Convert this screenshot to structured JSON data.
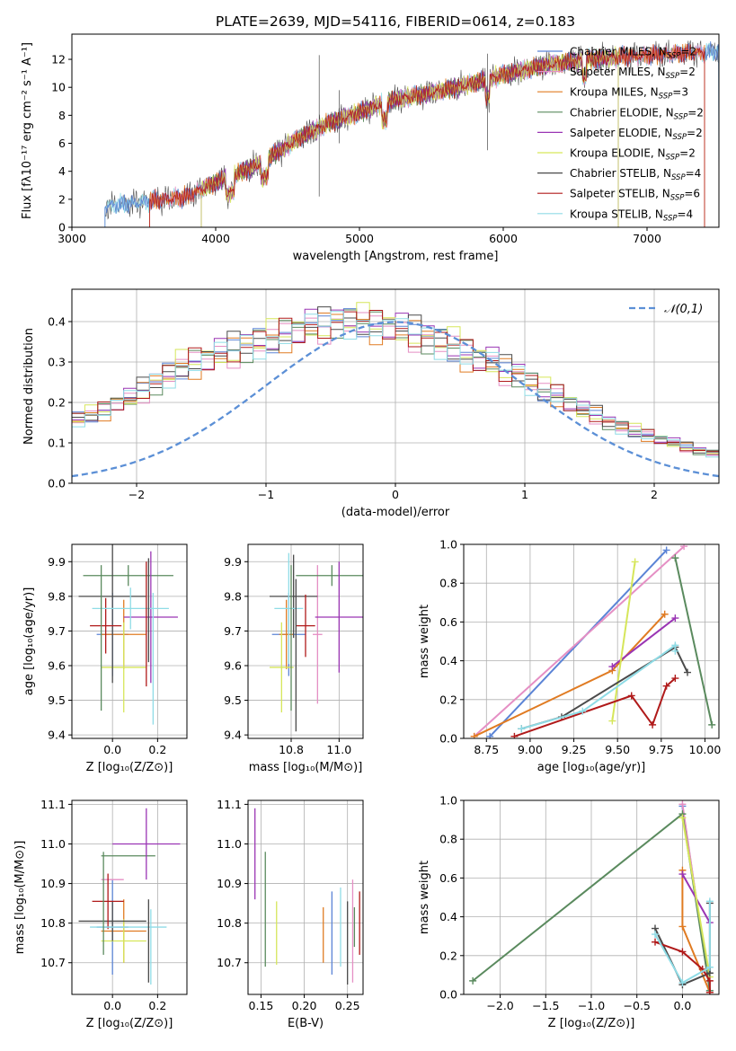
{
  "figure": {
    "title": "PLATE=2639, MJD=54116, FIBERID=0614, z=0.183"
  },
  "colors": {
    "Chabrier MILES": "#5b84d6",
    "Salpeter MILES": "#e58fc4",
    "Kroupa MILES": "#e07b22",
    "Chabrier ELODIE": "#5a8a5e",
    "Salpeter ELODIE": "#9a35b4",
    "Kroupa ELODIE": "#d6e65a",
    "Chabrier STELIB": "#4a4a4a",
    "Salpeter STELIB": "#b01a1a",
    "Kroupa STELIB": "#8fdce6",
    "normal": "#5b8fd6"
  },
  "chart_data": [
    {
      "id": "spectrum",
      "type": "line",
      "xlabel": "wavelength [Angstrom, rest frame]",
      "ylabel": "Flux [fλ10⁻¹⁷ erg cm⁻² s⁻¹ A⁻¹]",
      "xlim": [
        3000,
        7500
      ],
      "ylim": [
        0,
        13.8
      ],
      "xticks": [
        3000,
        4000,
        5000,
        6000,
        7000
      ],
      "yticks": [
        0,
        2,
        4,
        6,
        8,
        10,
        12
      ],
      "legend_position": "right",
      "legend": [
        {
          "label": "Chabrier MILES, N",
          "sub": "SSP",
          "tail": "=2",
          "color": "#5b84d6"
        },
        {
          "label": "Salpeter MILES, N",
          "sub": "SSP",
          "tail": "=2",
          "color": "#e58fc4"
        },
        {
          "label": "Kroupa MILES, N",
          "sub": "SSP",
          "tail": "=3",
          "color": "#e07b22"
        },
        {
          "label": "Chabrier ELODIE, N",
          "sub": "SSP",
          "tail": "=2",
          "color": "#5a8a5e"
        },
        {
          "label": "Salpeter ELODIE, N",
          "sub": "SSP",
          "tail": "=2",
          "color": "#9a35b4"
        },
        {
          "label": "Kroupa ELODIE, N",
          "sub": "SSP",
          "tail": "=2",
          "color": "#d6e65a"
        },
        {
          "label": "Chabrier STELIB, N",
          "sub": "SSP",
          "tail": "=4",
          "color": "#4a4a4a"
        },
        {
          "label": "Salpeter STELIB, N",
          "sub": "SSP",
          "tail": "=6",
          "color": "#b01a1a"
        },
        {
          "label": "Kroupa STELIB, N",
          "sub": "SSP",
          "tail": "=4",
          "color": "#8fdce6"
        }
      ],
      "continuum_anchors": [
        [
          3230,
          1.5
        ],
        [
          3500,
          1.8
        ],
        [
          3800,
          2.2
        ],
        [
          4000,
          3.2
        ],
        [
          4300,
          4.5
        ],
        [
          4600,
          6.5
        ],
        [
          4800,
          7.5
        ],
        [
          5000,
          8.2
        ],
        [
          5200,
          9.0
        ],
        [
          5500,
          9.6
        ],
        [
          5800,
          10.3
        ],
        [
          6000,
          10.9
        ],
        [
          6300,
          11.6
        ],
        [
          6600,
          12.0
        ],
        [
          7000,
          12.3
        ],
        [
          7400,
          12.5
        ],
        [
          7500,
          12.6
        ]
      ],
      "model_ranges": [
        [
          3230,
          7500
        ],
        [
          3540,
          7400
        ],
        [
          3540,
          7400
        ],
        [
          3900,
          6800
        ],
        [
          3900,
          6800
        ],
        [
          3900,
          6800
        ],
        [
          3230,
          7500
        ],
        [
          3540,
          7400
        ],
        [
          3230,
          7500
        ]
      ],
      "spikes": [
        [
          4720,
          2.2,
          12.3
        ],
        [
          5890,
          5.5,
          12.4
        ],
        [
          4860,
          6.0,
          9.8
        ]
      ]
    },
    {
      "id": "residuals",
      "type": "histogram",
      "xlabel": "(data-model)/error",
      "ylabel": "Normed distribution",
      "xlim": [
        -2.5,
        2.5
      ],
      "ylim": [
        0,
        0.48
      ],
      "xticks": [
        -2,
        -1,
        0,
        1,
        2
      ],
      "yticks": [
        0.0,
        0.1,
        0.2,
        0.3,
        0.4
      ],
      "legend": [
        {
          "label": "𝒩(0,1)",
          "color": "#5b8fd6",
          "style": "dashed"
        }
      ],
      "bin_width": 0.1,
      "base": [
        0.06,
        0.065,
        0.07,
        0.08,
        0.09,
        0.1,
        0.11,
        0.12,
        0.13,
        0.14,
        0.16,
        0.17,
        0.18,
        0.2,
        0.21,
        0.23,
        0.25,
        0.27,
        0.29,
        0.3,
        0.31,
        0.32,
        0.33,
        0.34,
        0.35,
        0.36,
        0.37,
        0.38,
        0.39,
        0.39,
        0.4,
        0.4,
        0.4,
        0.39,
        0.39,
        0.38,
        0.37,
        0.36,
        0.35,
        0.34,
        0.32,
        0.31,
        0.3,
        0.28,
        0.27,
        0.25,
        0.23,
        0.22,
        0.2,
        0.18,
        0.17,
        0.15,
        0.14,
        0.13,
        0.12,
        0.11,
        0.1,
        0.09,
        0.08,
        0.075,
        0.07,
        0.06,
        0.055,
        0.05,
        0.045,
        0.04,
        0.038,
        0.035,
        0.035,
        0.035
      ]
    },
    {
      "id": "z-age",
      "type": "errorbar",
      "xlabel": "Z [log₁₀(Z/Z⊙)]",
      "ylabel": "age  [log₁₀(age/yr)]",
      "xlim": [
        -0.18,
        0.33
      ],
      "ylim": [
        9.39,
        9.95
      ],
      "xticks": [
        0.0,
        0.2
      ],
      "yticks": [
        9.4,
        9.5,
        9.6,
        9.7,
        9.8,
        9.9
      ],
      "points": [
        {
          "x": 0.0,
          "y": 9.69,
          "xerr": 0.07,
          "yerr": 0.12,
          "color": "#5b84d6"
        },
        {
          "x": 0.2,
          "y": 9.69,
          "xerr": 0.0,
          "yerr": 0.0,
          "color": "#e58fc4"
        },
        {
          "x": 0.05,
          "y": 9.69,
          "xerr": 0.1,
          "yerr": 0.1,
          "color": "#e07b22"
        },
        {
          "x": 0.07,
          "y": 9.86,
          "xerr": 0.2,
          "yerr": 0.03,
          "color": "#5a8a5e"
        },
        {
          "x": 0.17,
          "y": 9.74,
          "xerr": 0.12,
          "yerr": 0.19,
          "color": "#9a35b4"
        },
        {
          "x": 0.05,
          "y": 9.595,
          "xerr": 0.1,
          "yerr": 0.13,
          "color": "#d6e65a"
        },
        {
          "x": 0.0,
          "y": 9.8,
          "xerr": 0.15,
          "yerr": 0.25,
          "color": "#4a4a4a"
        },
        {
          "x": -0.03,
          "y": 9.715,
          "xerr": 0.07,
          "yerr": 0.08,
          "color": "#b01a1a"
        },
        {
          "x": 0.08,
          "y": 9.765,
          "xerr": 0.17,
          "yerr": 0.06,
          "color": "#8fdce6"
        },
        {
          "x": 0.18,
          "y": 9.62,
          "xerr": 0.0,
          "yerr": 0.19,
          "color": "#8fdce6"
        },
        {
          "x": 0.16,
          "y": 9.76,
          "xerr": 0.0,
          "yerr": 0.15,
          "color": "#4a4a4a"
        },
        {
          "x": -0.05,
          "y": 9.68,
          "xerr": 0.0,
          "yerr": 0.21,
          "color": "#5a8a5e"
        },
        {
          "x": 0.15,
          "y": 9.72,
          "xerr": 0.0,
          "yerr": 0.18,
          "color": "#b01a1a"
        }
      ]
    },
    {
      "id": "mass-age",
      "type": "errorbar",
      "xlabel": "mass [log₁₀(M/M⊙)]",
      "ylabel": "",
      "xlim": [
        10.62,
        11.1
      ],
      "ylim": [
        9.39,
        9.95
      ],
      "xticks": [
        10.8,
        11.0
      ],
      "yticks": [
        9.4,
        9.5,
        9.6,
        9.7,
        9.8,
        9.9
      ],
      "points": [
        {
          "x": 10.79,
          "y": 9.69,
          "xerr": 0.07,
          "yerr": 0.12,
          "color": "#5b84d6"
        },
        {
          "x": 10.91,
          "y": 9.69,
          "xerr": 0.02,
          "yerr": 0.2,
          "color": "#e58fc4"
        },
        {
          "x": 10.78,
          "y": 9.69,
          "xerr": 0.03,
          "yerr": 0.1,
          "color": "#e07b22"
        },
        {
          "x": 10.97,
          "y": 9.86,
          "xerr": 0.15,
          "yerr": 0.03,
          "color": "#5a8a5e"
        },
        {
          "x": 11.0,
          "y": 9.74,
          "xerr": 0.1,
          "yerr": 0.16,
          "color": "#9a35b4"
        },
        {
          "x": 10.76,
          "y": 9.595,
          "xerr": 0.05,
          "yerr": 0.13,
          "color": "#d6e65a"
        },
        {
          "x": 10.81,
          "y": 9.8,
          "xerr": 0.1,
          "yerr": 0.12,
          "color": "#4a4a4a"
        },
        {
          "x": 10.86,
          "y": 9.715,
          "xerr": 0.04,
          "yerr": 0.09,
          "color": "#b01a1a"
        },
        {
          "x": 10.79,
          "y": 9.765,
          "xerr": 0.06,
          "yerr": 0.16,
          "color": "#8fdce6"
        },
        {
          "x": 10.82,
          "y": 9.63,
          "xerr": 0.0,
          "yerr": 0.22,
          "color": "#4a4a4a"
        },
        {
          "x": 10.8,
          "y": 9.68,
          "xerr": 0.0,
          "yerr": 0.21,
          "color": "#5a8a5e"
        }
      ]
    },
    {
      "id": "age-weight",
      "type": "line",
      "xlabel": "age  [log₁₀(age/yr)]",
      "ylabel": "mass weight",
      "xlim": [
        8.62,
        10.08
      ],
      "ylim": [
        0,
        1.0
      ],
      "xticks": [
        8.75,
        9.0,
        9.25,
        9.5,
        9.75,
        10.0
      ],
      "yticks": [
        0.0,
        0.2,
        0.4,
        0.6,
        0.8,
        1.0
      ],
      "series": [
        {
          "color": "#5b84d6",
          "points": [
            [
              8.77,
              0.01
            ],
            [
              9.78,
              0.97
            ]
          ]
        },
        {
          "color": "#e58fc4",
          "points": [
            [
              8.68,
              0.01
            ],
            [
              9.88,
              0.99
            ]
          ]
        },
        {
          "color": "#e07b22",
          "points": [
            [
              8.68,
              0.01
            ],
            [
              9.47,
              0.35
            ],
            [
              9.77,
              0.64
            ]
          ]
        },
        {
          "color": "#5a8a5e",
          "points": [
            [
              9.83,
              0.93
            ],
            [
              10.04,
              0.07
            ]
          ]
        },
        {
          "color": "#9a35b4",
          "points": [
            [
              9.47,
              0.37
            ],
            [
              9.83,
              0.62
            ]
          ]
        },
        {
          "color": "#d6e65a",
          "points": [
            [
              9.47,
              0.09
            ],
            [
              9.6,
              0.91
            ]
          ]
        },
        {
          "color": "#4a4a4a",
          "points": [
            [
              8.95,
              0.05
            ],
            [
              9.18,
              0.11
            ],
            [
              9.83,
              0.47
            ],
            [
              9.9,
              0.34
            ]
          ]
        },
        {
          "color": "#b01a1a",
          "points": [
            [
              8.91,
              0.01
            ],
            [
              9.58,
              0.22
            ],
            [
              9.7,
              0.07
            ],
            [
              9.78,
              0.27
            ],
            [
              9.83,
              0.31
            ]
          ]
        },
        {
          "color": "#8fdce6",
          "points": [
            [
              8.95,
              0.05
            ],
            [
              9.3,
              0.14
            ],
            [
              9.83,
              0.48
            ],
            [
              9.83,
              0.45
            ]
          ]
        }
      ]
    },
    {
      "id": "z-mass",
      "type": "errorbar",
      "xlabel": "Z [log₁₀(Z/Z⊙)]",
      "ylabel": "mass [log₁₀(M/M⊙)]",
      "xlim": [
        -0.18,
        0.33
      ],
      "ylim": [
        10.62,
        11.11
      ],
      "xticks": [
        0.0,
        0.2
      ],
      "yticks": [
        10.7,
        10.8,
        10.9,
        11.0,
        11.1
      ],
      "points": [
        {
          "x": 0.0,
          "y": 10.79,
          "xerr": 0.07,
          "yerr": 0.12,
          "color": "#5b84d6"
        },
        {
          "x": 0.0,
          "y": 10.91,
          "xerr": 0.05,
          "yerr": 0.0,
          "color": "#e58fc4"
        },
        {
          "x": 0.05,
          "y": 10.78,
          "xerr": 0.1,
          "yerr": 0.08,
          "color": "#e07b22"
        },
        {
          "x": 0.07,
          "y": 10.97,
          "xerr": 0.12,
          "yerr": 0.0,
          "color": "#5a8a5e"
        },
        {
          "x": 0.15,
          "y": 11.0,
          "xerr": 0.15,
          "yerr": 0.09,
          "color": "#9a35b4"
        },
        {
          "x": 0.05,
          "y": 10.755,
          "xerr": 0.1,
          "yerr": 0.055,
          "color": "#d6e65a"
        },
        {
          "x": 0.0,
          "y": 10.805,
          "xerr": 0.15,
          "yerr": 0.05,
          "color": "#4a4a4a"
        },
        {
          "x": -0.02,
          "y": 10.855,
          "xerr": 0.07,
          "yerr": 0.07,
          "color": "#b01a1a"
        },
        {
          "x": 0.07,
          "y": 10.79,
          "xerr": 0.17,
          "yerr": 0.0,
          "color": "#8fdce6"
        },
        {
          "x": 0.17,
          "y": 10.74,
          "xerr": 0.0,
          "yerr": 0.095,
          "color": "#8fdce6"
        },
        {
          "x": 0.16,
          "y": 10.755,
          "xerr": 0.0,
          "yerr": 0.105,
          "color": "#4a4a4a"
        },
        {
          "x": -0.04,
          "y": 10.85,
          "xerr": 0.0,
          "yerr": 0.13,
          "color": "#5a8a5e"
        }
      ]
    },
    {
      "id": "ebv-mass",
      "type": "errorbar",
      "xlabel": "E(B-V)",
      "ylabel": "",
      "xlim": [
        0.135,
        0.268
      ],
      "ylim": [
        10.62,
        11.11
      ],
      "xticks": [
        0.15,
        0.2,
        0.25
      ],
      "yticks": [
        10.7,
        10.8,
        10.9,
        11.0,
        11.1
      ],
      "points": [
        {
          "x": 0.232,
          "y": 10.775,
          "xerr": 0,
          "yerr": 0.105,
          "color": "#5b84d6"
        },
        {
          "x": 0.256,
          "y": 10.78,
          "xerr": 0,
          "yerr": 0.13,
          "color": "#e58fc4"
        },
        {
          "x": 0.222,
          "y": 10.77,
          "xerr": 0,
          "yerr": 0.07,
          "color": "#e07b22"
        },
        {
          "x": 0.155,
          "y": 10.835,
          "xerr": 0,
          "yerr": 0.145,
          "color": "#5a8a5e"
        },
        {
          "x": 0.143,
          "y": 10.975,
          "xerr": 0,
          "yerr": 0.115,
          "color": "#9a35b4"
        },
        {
          "x": 0.168,
          "y": 10.775,
          "xerr": 0,
          "yerr": 0.08,
          "color": "#d6e65a"
        },
        {
          "x": 0.25,
          "y": 10.75,
          "xerr": 0,
          "yerr": 0.105,
          "color": "#4a4a4a"
        },
        {
          "x": 0.264,
          "y": 10.8,
          "xerr": 0,
          "yerr": 0.08,
          "color": "#b01a1a"
        },
        {
          "x": 0.242,
          "y": 10.79,
          "xerr": 0,
          "yerr": 0.1,
          "color": "#8fdce6"
        },
        {
          "x": 0.258,
          "y": 10.79,
          "xerr": 0,
          "yerr": 0.05,
          "color": "#5a8a5e"
        }
      ]
    },
    {
      "id": "z-weight",
      "type": "line",
      "xlabel": "Z [log₁₀(Z/Z⊙)]",
      "ylabel": "mass weight",
      "xlim": [
        -2.4,
        0.4
      ],
      "ylim": [
        0,
        1.0
      ],
      "xticks": [
        -2.0,
        -1.5,
        -1.0,
        -0.5,
        0.0
      ],
      "yticks": [
        0.0,
        0.2,
        0.4,
        0.6,
        0.8,
        1.0
      ],
      "series": [
        {
          "color": "#5b84d6",
          "points": [
            [
              0.0,
              0.97
            ],
            [
              0.3,
              0.02
            ]
          ]
        },
        {
          "color": "#e58fc4",
          "points": [
            [
              0.0,
              0.98
            ],
            [
              0.3,
              0.01
            ]
          ]
        },
        {
          "color": "#e07b22",
          "points": [
            [
              0.0,
              0.64
            ],
            [
              0.0,
              0.35
            ],
            [
              0.3,
              0.01
            ]
          ]
        },
        {
          "color": "#5a8a5e",
          "points": [
            [
              -2.3,
              0.07
            ],
            [
              0.0,
              0.93
            ],
            [
              0.3,
              0.02
            ]
          ]
        },
        {
          "color": "#9a35b4",
          "points": [
            [
              0.0,
              0.62
            ],
            [
              0.3,
              0.37
            ]
          ]
        },
        {
          "color": "#d6e65a",
          "points": [
            [
              0.0,
              0.91
            ],
            [
              0.3,
              0.09
            ]
          ]
        },
        {
          "color": "#4a4a4a",
          "points": [
            [
              -0.3,
              0.34
            ],
            [
              0.0,
              0.05
            ],
            [
              0.3,
              0.11
            ],
            [
              0.3,
              0.47
            ]
          ]
        },
        {
          "color": "#b01a1a",
          "points": [
            [
              -0.3,
              0.27
            ],
            [
              0.0,
              0.22
            ],
            [
              0.22,
              0.13
            ],
            [
              0.3,
              0.07
            ],
            [
              0.3,
              0.01
            ]
          ]
        },
        {
          "color": "#8fdce6",
          "points": [
            [
              -0.3,
              0.31
            ],
            [
              0.0,
              0.06
            ],
            [
              0.3,
              0.14
            ],
            [
              0.3,
              0.48
            ]
          ]
        }
      ]
    }
  ]
}
